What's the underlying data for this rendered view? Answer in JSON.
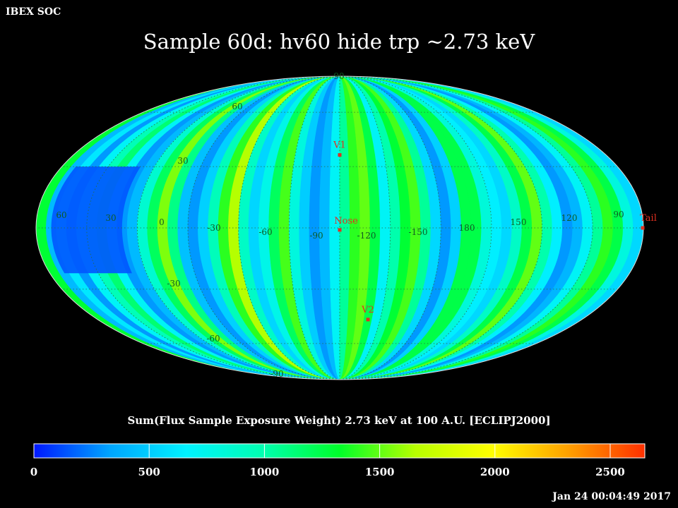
{
  "header": {
    "corner_label": "IBEX SOC"
  },
  "chart_data": {
    "type": "heatmap",
    "projection": "mollweide",
    "title": "Sample 60d: hv60 hide trp ~2.73 keV",
    "colorbar_label": "Sum(Flux Sample Exposure Weight)  2.73 keV at 100 A.U. [ECLIPJ2000]",
    "colorbar_ticks": [
      "0",
      "500",
      "1000",
      "1500",
      "2000",
      "2500"
    ],
    "colorbar_range": [
      0,
      2650
    ],
    "colorbar_colors": [
      "#0018ff",
      "#00a6ff",
      "#00f2ff",
      "#00ffb0",
      "#00ff2a",
      "#b8ff00",
      "#ffff00",
      "#ffa000",
      "#ff3000"
    ],
    "grid_lines": "dotted",
    "longitude_labels": [
      "60",
      "30",
      "0",
      "-30",
      "-60",
      "-90",
      "-120",
      "-150",
      "180",
      "150",
      "120",
      "90"
    ],
    "latitude_labels": [
      "90",
      "60",
      "30",
      "-30",
      "-60",
      "-90"
    ],
    "markers": [
      {
        "name": "V1",
        "lon": 0,
        "lat": 36,
        "color": "#e03020"
      },
      {
        "name": "Nose",
        "lon": 0,
        "lat": -1,
        "color": "#e03020"
      },
      {
        "name": "V2",
        "lon": -21,
        "lat": -46,
        "color": "#e03020"
      },
      {
        "name": "Tail",
        "lon": 180,
        "lat": 0,
        "color": "#e03020"
      }
    ],
    "stripe_values": [
      1300,
      420,
      620,
      300,
      700,
      960,
      1150,
      700,
      300,
      420,
      860,
      1200,
      1550,
      1100,
      450,
      300,
      520,
      950,
      1400,
      1650,
      900,
      540,
      760,
      1200,
      1450,
      800,
      500,
      300,
      420,
      700,
      1050,
      1400,
      1500,
      1250,
      700,
      1000,
      1300,
      1450,
      1050,
      550,
      300,
      520,
      1250,
      1250,
      820,
      650,
      550,
      900,
      1250,
      1500,
      1000,
      650,
      300,
      400,
      700,
      1050,
      1400,
      1250,
      800,
      550
    ],
    "low_region_value": 150,
    "footer_timestamp": "Jan 24 00:04:49 2017"
  }
}
